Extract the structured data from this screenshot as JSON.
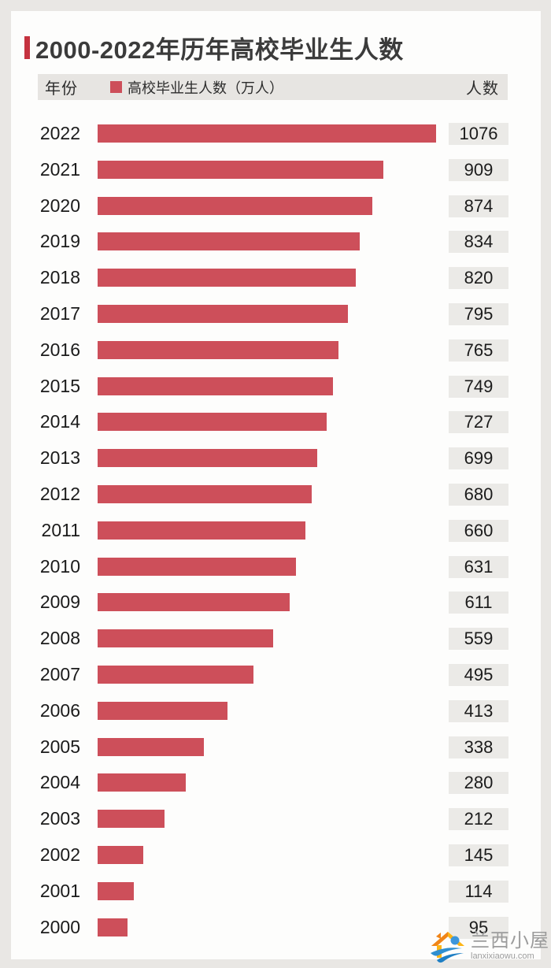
{
  "page": {
    "outer_background": "#e9e7e4",
    "card_background": "#fdfdfc"
  },
  "title": "2000-2022年历年高校毕业生人数",
  "accent_color": "#c5323f",
  "header": {
    "year_label": "年份",
    "legend_label": "高校毕业生人数（万人）",
    "count_label": "人数",
    "legend_color": "#cd4f5a"
  },
  "chart_data": {
    "type": "bar",
    "orientation": "horizontal",
    "title": "2000-2022年历年高校毕业生人数",
    "categories": [
      "2022",
      "2021",
      "2020",
      "2019",
      "2018",
      "2017",
      "2016",
      "2015",
      "2014",
      "2013",
      "2012",
      "2011",
      "2010",
      "2009",
      "2008",
      "2007",
      "2006",
      "2005",
      "2004",
      "2003",
      "2002",
      "2001",
      "2000"
    ],
    "values": [
      1076,
      909,
      874,
      834,
      820,
      795,
      765,
      749,
      727,
      699,
      680,
      660,
      631,
      611,
      559,
      495,
      413,
      338,
      280,
      212,
      145,
      114,
      95
    ],
    "unit": "万人",
    "bar_color": "#cd4f5a",
    "value_badge_background": "#ebeae7",
    "xlim": [
      0,
      1076
    ],
    "grid": false,
    "legend_position": "top"
  },
  "watermark": {
    "name": "兰西小屋",
    "url": "lanxixiaowu.com"
  }
}
